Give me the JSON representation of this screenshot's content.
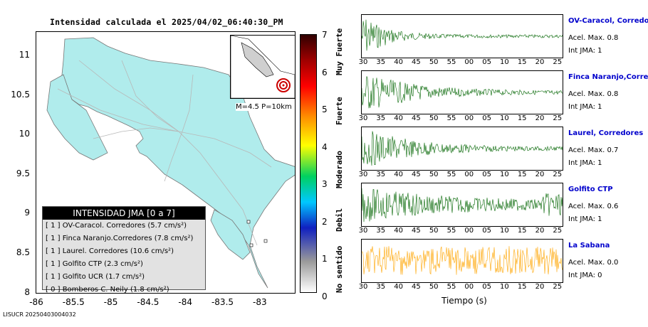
{
  "map": {
    "title": "Intensidad calculada el 2025/04/02_06:40:30_PM",
    "y_ticks": [
      "11",
      "10.5",
      "10",
      "9.5",
      "9",
      "8.5",
      "8"
    ],
    "x_ticks": [
      "-86",
      "-85.5",
      "-85",
      "-84.5",
      "-84",
      "-83.5",
      "-83"
    ],
    "inset_label": "M=4.5 P=10km",
    "land_color": "#b0ecec",
    "epicenter": {
      "lon": -82.98,
      "lat": 8.56
    }
  },
  "legend": {
    "title": "INTENSIDAD JMA [0 a 7]",
    "rows": [
      "[ 1 ]  OV-Caracol. Corredores (5.7 cm/s²)",
      "[ 1 ]  Finca Naranjo.Corredores (7.8 cm/s²)",
      "[ 1 ]  Laurel. Corredores (10.6 cm/s²)",
      "[ 1 ]  Golfito CTP (2.3 cm/s²)",
      "[ 1 ]  Golfito UCR (1.7 cm/s²)",
      "[ 0 ]  Bomberos C. Neily (1.8 cm/s²)"
    ]
  },
  "colorbar": {
    "ticks": [
      "7",
      "6",
      "5",
      "4",
      "3",
      "2",
      "1",
      "0"
    ],
    "labels": [
      "Muy Fuerte",
      "Fuerte",
      "Moderado",
      "Debil",
      "No sentido"
    ]
  },
  "waveforms": {
    "time_ticks": [
      "30",
      "35",
      "40",
      "45",
      "50",
      "55",
      "00",
      "05",
      "10",
      "15",
      "20",
      "25"
    ],
    "xlabel": "Tiempo (s)",
    "stations": [
      {
        "name": "OV-Caracol, Corredores",
        "acel": "Acel. Max. 0.8",
        "jma": "Int JMA: 1",
        "color": "#006400"
      },
      {
        "name": "Finca Naranjo,Corredores",
        "acel": "Acel. Max. 0.8",
        "jma": "Int JMA: 1",
        "color": "#006400"
      },
      {
        "name": "Laurel, Corredores",
        "acel": "Acel. Max. 0.7",
        "jma": "Int JMA: 1",
        "color": "#006400"
      },
      {
        "name": "Golfito CTP",
        "acel": "Acel. Max. 0.6",
        "jma": "Int JMA: 1",
        "color": "#006400"
      },
      {
        "name": "La Sabana",
        "acel": "Acel. Max. 0.0",
        "jma": "Int JMA: 0",
        "color": "#ffa500"
      }
    ]
  },
  "footer": "LISUCR 20250403004032"
}
